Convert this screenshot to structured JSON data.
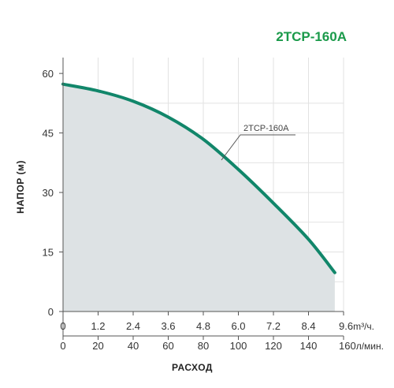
{
  "chart_data": {
    "type": "area",
    "title": "2TCP-160A",
    "ylabel": "НАПОР (м)",
    "xlabel": "РАСХОД",
    "ylim": [
      0,
      64
    ],
    "y_ticks": [
      "0",
      "15",
      "30",
      "45",
      "60"
    ],
    "y_tick_values": [
      0,
      15,
      30,
      45,
      60
    ],
    "x_ticks_m3": [
      "0",
      "1.2",
      "2.4",
      "3.6",
      "4.8",
      "6.0",
      "7.2",
      "8.4",
      "9.6"
    ],
    "x_ticks_lmin": [
      "0",
      "20",
      "40",
      "60",
      "80",
      "100",
      "120",
      "140",
      "160"
    ],
    "x_unit_m3": "m³/ч.",
    "x_unit_lmin": "л/мин.",
    "xlim_lmin": [
      0,
      160
    ],
    "grid": true,
    "series": [
      {
        "name": "2TCP-160A",
        "x_lmin": [
          0,
          20,
          40,
          60,
          80,
          100,
          120,
          140,
          155
        ],
        "y": [
          57.3,
          55.6,
          53.0,
          49.0,
          43.4,
          35.8,
          27.3,
          18.2,
          9.8
        ]
      }
    ],
    "colors": {
      "line": "#11866a",
      "fill": "#dde2e4",
      "title": "#1a9a4a",
      "grid": "#e2e2e2"
    }
  }
}
